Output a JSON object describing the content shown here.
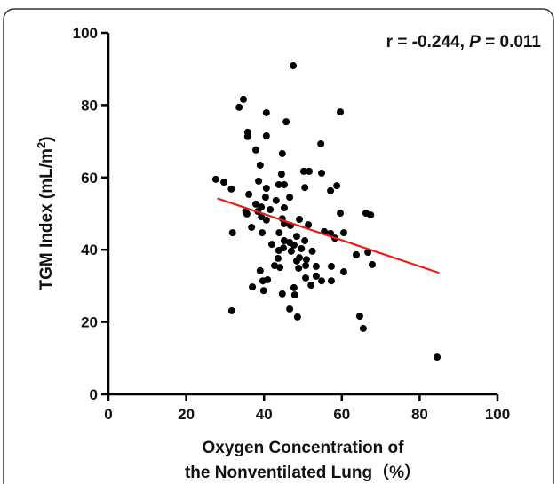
{
  "chart_data": {
    "type": "scatter",
    "annotation": [
      "r = -0.244, ",
      "P",
      " = 0.011"
    ],
    "xlabel": [
      "Oxygen Concentration of",
      "the Nonventilated Lung（%）"
    ],
    "ylabel": [
      "TGM Index (mL/m",
      "2",
      ")"
    ],
    "xlim": [
      0,
      100
    ],
    "xticks": [
      0,
      20,
      40,
      60,
      80,
      100
    ],
    "ylim": [
      0,
      100
    ],
    "yticks": [
      0,
      20,
      40,
      60,
      80,
      100
    ],
    "color": "#000000",
    "x": [
      47.5,
      34.7,
      33.6,
      40.6,
      59.6,
      45.7,
      35.8,
      35.8,
      40.6,
      37.9,
      44.7,
      54.6,
      39.0,
      50.2,
      51.6,
      54.8,
      44.5,
      27.6,
      29.7,
      38.6,
      43.8,
      45.2,
      58.7,
      50.5,
      57.1,
      31.6,
      40.6,
      36.1,
      40.4,
      46.6,
      43.1,
      37.9,
      39.3,
      45.2,
      41.6,
      35.3,
      38.4,
      35.6,
      59.6,
      66.2,
      67.4,
      39.3,
      44.7,
      49.1,
      40.6,
      45.2,
      51.4,
      36.8,
      46.8,
      31.9,
      39.5,
      43.9,
      55.5,
      57.1,
      60.5,
      48.4,
      58.2,
      50.5,
      45.2,
      46.6,
      42.0,
      47.7,
      45.0,
      49.6,
      43.8,
      47.0,
      52.4,
      66.7,
      63.7,
      49.1,
      43.6,
      50.9,
      48.4,
      67.8,
      42.7,
      50.7,
      53.4,
      57.3,
      44.1,
      39.0,
      48.9,
      60.5,
      53.4,
      50.7,
      54.8,
      57.3,
      40.9,
      39.7,
      52.1,
      37.0,
      47.7,
      39.9,
      44.7,
      47.9,
      46.6,
      31.7,
      48.6,
      64.6,
      65.5,
      84.5
    ],
    "y": [
      90.9,
      81.6,
      79.4,
      77.9,
      78.1,
      75.4,
      72.5,
      71.3,
      71.5,
      67.6,
      66.6,
      69.3,
      63.4,
      61.7,
      61.7,
      61.2,
      60.9,
      59.5,
      58.7,
      59.0,
      58.0,
      58.0,
      57.7,
      57.2,
      56.3,
      56.8,
      57.0,
      55.3,
      54.5,
      54.5,
      53.6,
      52.6,
      51.8,
      51.6,
      51.1,
      50.6,
      50.6,
      49.9,
      50.1,
      50.1,
      49.6,
      49.1,
      48.6,
      48.4,
      48.2,
      47.2,
      46.9,
      46.2,
      46.7,
      44.7,
      44.7,
      44.7,
      45.0,
      44.5,
      44.7,
      43.7,
      43.2,
      42.5,
      42.5,
      42.0,
      41.5,
      41.3,
      40.5,
      40.3,
      39.8,
      39.6,
      39.6,
      39.3,
      38.6,
      37.8,
      37.6,
      37.3,
      36.9,
      35.9,
      35.6,
      35.6,
      35.4,
      35.4,
      35.1,
      34.2,
      34.9,
      33.9,
      32.7,
      32.2,
      31.4,
      31.4,
      31.7,
      31.4,
      30.2,
      29.7,
      29.5,
      28.7,
      27.8,
      27.5,
      23.6,
      23.1,
      21.4,
      21.6,
      18.2,
      10.3
    ],
    "fit": {
      "x": [
        28,
        85
      ],
      "y": [
        54.2,
        33.6
      ],
      "color": "#e8201c"
    }
  }
}
